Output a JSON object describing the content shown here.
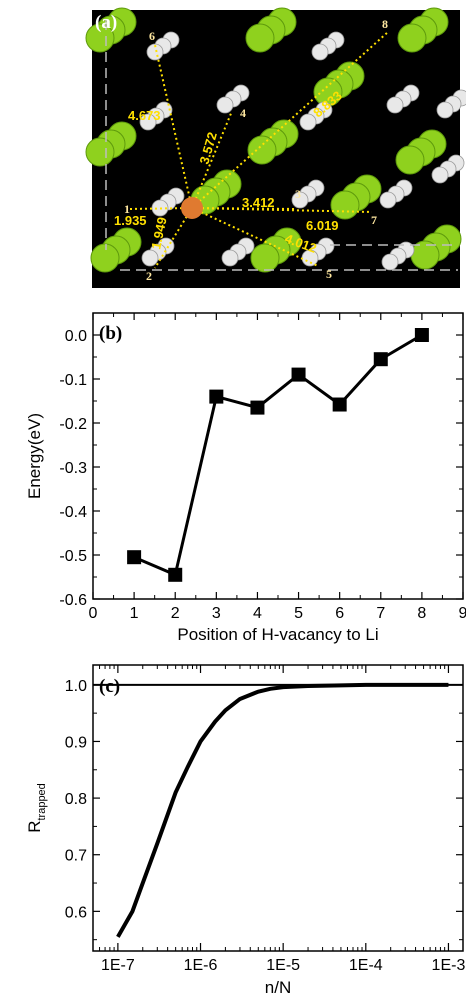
{
  "panel_a": {
    "label": "(a)",
    "sites": [
      {
        "n": "1",
        "dist": "1.935"
      },
      {
        "n": "2",
        "dist": "1.949"
      },
      {
        "n": "3",
        "dist": "3.412"
      },
      {
        "n": "4",
        "dist": "3.572"
      },
      {
        "n": "5",
        "dist": "4.012"
      },
      {
        "n": "6",
        "dist": "4.673"
      },
      {
        "n": "7",
        "dist": "6.019"
      },
      {
        "n": "8",
        "dist": "8.833"
      }
    ],
    "colors": {
      "background": "#000000",
      "li_atom": "#e07a30",
      "green_atom": "#8fd11e",
      "h_atom": "#e8e8e8",
      "line": "#ffe000"
    }
  },
  "chart_data": [
    {
      "type": "line",
      "panel_label": "(b)",
      "xlabel": "Position of H-vacancy to Li",
      "ylabel": "Energy(eV)",
      "xlim": [
        0,
        9
      ],
      "ylim": [
        -0.6,
        0.05
      ],
      "x_ticks": [
        "0",
        "1",
        "2",
        "3",
        "4",
        "5",
        "6",
        "7",
        "8",
        "9"
      ],
      "y_ticks": [
        "0.0",
        "-0.1",
        "-0.2",
        "-0.3",
        "-0.4",
        "-0.5",
        "-0.6"
      ],
      "x": [
        1,
        2,
        3,
        4,
        5,
        6,
        7,
        8
      ],
      "y": [
        -0.505,
        -0.545,
        -0.14,
        -0.165,
        -0.09,
        -0.158,
        -0.055,
        0.0
      ],
      "marker": "square",
      "color": "#000000"
    },
    {
      "type": "line",
      "panel_label": "(c)",
      "xlabel": "n/N",
      "ylabel_main": "R",
      "ylabel_sub": "trapped",
      "x_scale": "log",
      "xlim": [
        5e-08,
        0.0015
      ],
      "ylim": [
        0.53,
        1.035
      ],
      "x_ticks": [
        "1E-7",
        "1E-6",
        "1E-5",
        "1E-4",
        "1E-3"
      ],
      "y_ticks": [
        "0.6",
        "0.7",
        "0.8",
        "0.9",
        "1.0"
      ],
      "reference_line": 1.0,
      "x": [
        1e-07,
        1.5e-07,
        2e-07,
        3e-07,
        5e-07,
        7e-07,
        1e-06,
        1.5e-06,
        2e-06,
        3e-06,
        5e-06,
        7e-06,
        1e-05,
        2e-05,
        5e-05,
        0.0001,
        0.001
      ],
      "y": [
        0.555,
        0.6,
        0.65,
        0.72,
        0.81,
        0.855,
        0.9,
        0.935,
        0.955,
        0.975,
        0.988,
        0.993,
        0.996,
        0.998,
        0.999,
        1.0,
        1.0
      ],
      "color": "#000000"
    }
  ]
}
